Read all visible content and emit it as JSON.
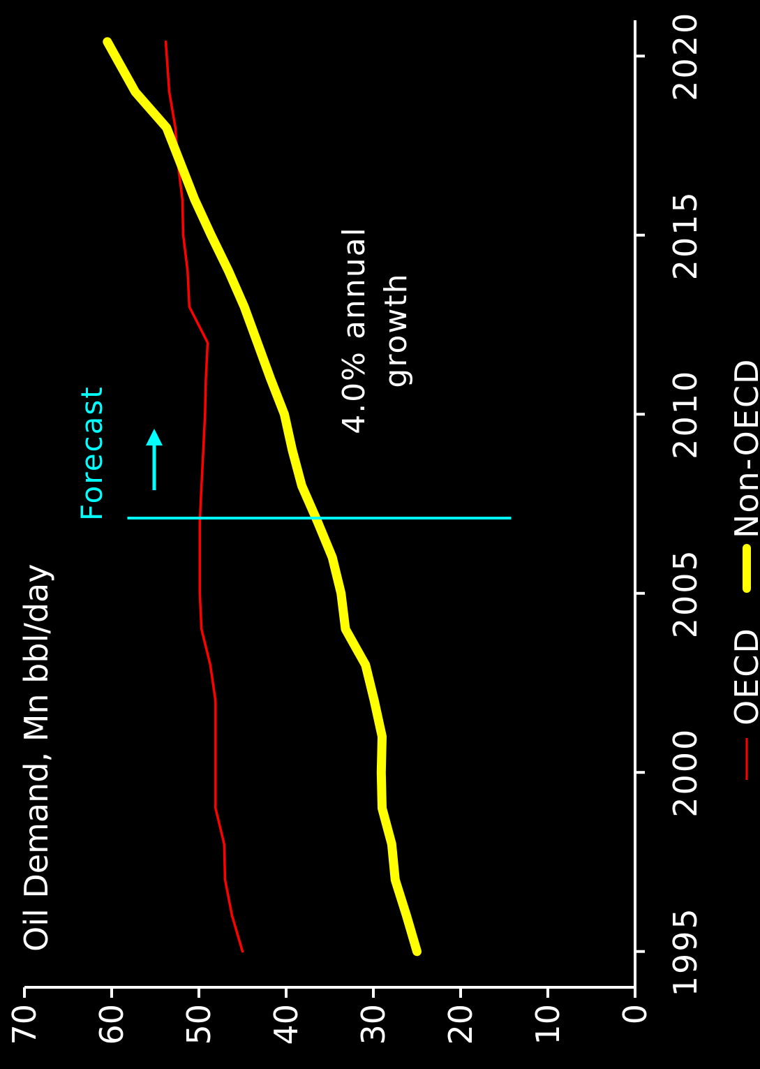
{
  "chart_data": {
    "type": "line",
    "title": "Oil Demand, Mn bbl/day",
    "ylabel": "",
    "xlabel": "",
    "ylim": [
      0,
      70
    ],
    "xlim": [
      1994,
      2021
    ],
    "x_ticks": [
      1995,
      2000,
      2005,
      2010,
      2015,
      2020
    ],
    "y_ticks": [
      0,
      10,
      20,
      30,
      40,
      50,
      60,
      70
    ],
    "series": [
      {
        "name": "OECD",
        "color": "#ff0000",
        "x": [
          1995,
          1996,
          1997,
          1998,
          1999,
          2000,
          2001,
          2002,
          2003,
          2004,
          2005,
          2006,
          2007,
          2008,
          2009,
          2010,
          2011,
          2012,
          2013,
          2014,
          2015,
          2016,
          2017,
          2018,
          2019,
          2020.4
        ],
        "values": [
          45,
          46.2,
          47,
          47.1,
          48.1,
          48.1,
          48.1,
          48.1,
          48.7,
          49.7,
          49.9,
          49.9,
          49.9,
          49.7,
          49.5,
          49.3,
          49.2,
          49.0,
          51.1,
          51.3,
          51.8,
          51.9,
          52.4,
          52.7,
          53.4,
          53.8
        ]
      },
      {
        "name": "Non-OECD",
        "color": "#ffff00",
        "x": [
          1995,
          1996,
          1997,
          1998,
          1999,
          2000,
          2001,
          2002,
          2003,
          2004,
          2005,
          2006,
          2007,
          2008,
          2009,
          2010,
          2011,
          2012,
          2013,
          2014,
          2015,
          2016,
          2017,
          2018,
          2019,
          2020.4
        ],
        "values": [
          25,
          26.2,
          27.5,
          27.9,
          29.0,
          29.1,
          29.0,
          29.9,
          30.9,
          33.2,
          33.7,
          34.7,
          36.4,
          38.2,
          39.3,
          40.2,
          41.8,
          43.3,
          44.8,
          46.6,
          48.6,
          50.5,
          52.1,
          53.7,
          57.3,
          60.5
        ]
      }
    ],
    "annotations": {
      "forecast_label": "Forecast",
      "forecast_color": "#00ffff",
      "forecast_year": 2007.1,
      "growth_line1": "4.0% annual",
      "growth_line2": "growth"
    },
    "legend": {
      "placement": "bottom",
      "items": [
        "OECD",
        "Non-OECD"
      ]
    }
  }
}
